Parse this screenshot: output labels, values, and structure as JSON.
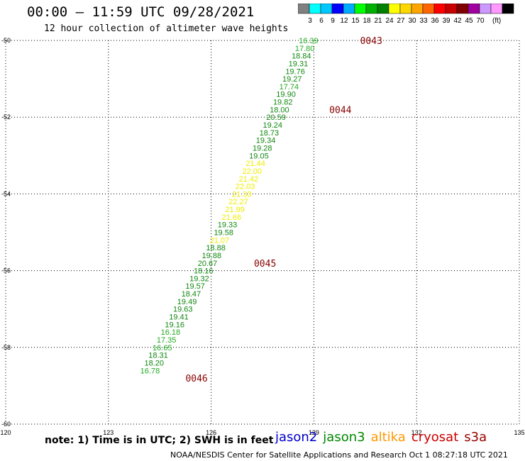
{
  "header": {
    "title": "00:00 – 11:59 UTC 09/28/2021",
    "subtitle": "12 hour collection of altimeter wave heights"
  },
  "colorbar": {
    "labels": [
      "3",
      "6",
      "9",
      "12",
      "15",
      "18",
      "21",
      "24",
      "27",
      "30",
      "33",
      "36",
      "39",
      "42",
      "45",
      "70"
    ],
    "unit": "(ft)",
    "colors": [
      "#808080",
      "#00ffff",
      "#00c8ff",
      "#0000ff",
      "#00aaff",
      "#00ff00",
      "#00b000",
      "#008000",
      "#ffff00",
      "#ffd700",
      "#ffa500",
      "#ff6600",
      "#ff0000",
      "#c80000",
      "#800000",
      "#a000a0",
      "#cc99ff",
      "#ff99ff",
      "#000000"
    ]
  },
  "footer": {
    "note": "note: 1) Time is in UTC; 2) SWH is in feet",
    "credit": "NOAA/NESDIS Center for Satellite Applications and Research    Oct  1 08:27:18 UTC 2021"
  },
  "satellites": [
    {
      "name": "jason2",
      "color": "#0000cc"
    },
    {
      "name": "jason3",
      "color": "#008800"
    },
    {
      "name": "altika",
      "color": "#ff9900"
    },
    {
      "name": "cryosat",
      "color": "#cc0000"
    },
    {
      "name": "s3a",
      "color": "#990000"
    }
  ],
  "chart_data": {
    "type": "scatter",
    "xlim": [
      120,
      135
    ],
    "ylim": [
      -60,
      -50
    ],
    "x_ticks": [
      120,
      123,
      126,
      129,
      132,
      135
    ],
    "y_ticks": [
      -50,
      -52,
      -54,
      -56,
      -58,
      -60
    ],
    "grid": true,
    "points": [
      {
        "lon": 129.13,
        "lat": -50.0,
        "value": "16.39",
        "color": "#22aa22"
      },
      {
        "lon": 129.02,
        "lat": -50.2,
        "value": "17.80",
        "color": "#22aa22"
      },
      {
        "lon": 128.92,
        "lat": -50.4,
        "value": "18.84",
        "color": "#118811"
      },
      {
        "lon": 128.83,
        "lat": -50.6,
        "value": "19.31",
        "color": "#118811"
      },
      {
        "lon": 128.74,
        "lat": -50.8,
        "value": "19.76",
        "color": "#118811"
      },
      {
        "lon": 128.65,
        "lat": -51.0,
        "value": "19.27",
        "color": "#118811"
      },
      {
        "lon": 128.56,
        "lat": -51.2,
        "value": "17.74",
        "color": "#22aa22"
      },
      {
        "lon": 128.47,
        "lat": -51.4,
        "value": "19.90",
        "color": "#118811"
      },
      {
        "lon": 128.38,
        "lat": -51.6,
        "value": "19.82",
        "color": "#118811"
      },
      {
        "lon": 128.28,
        "lat": -51.8,
        "value": "18.00",
        "color": "#118811"
      },
      {
        "lon": 128.18,
        "lat": -52.0,
        "value": "20.59",
        "color": "#118811"
      },
      {
        "lon": 128.08,
        "lat": -52.2,
        "value": "19.24",
        "color": "#118811"
      },
      {
        "lon": 127.98,
        "lat": -52.4,
        "value": "18.73",
        "color": "#118811"
      },
      {
        "lon": 127.88,
        "lat": -52.6,
        "value": "19.34",
        "color": "#118811"
      },
      {
        "lon": 127.78,
        "lat": -52.8,
        "value": "19.28",
        "color": "#118811"
      },
      {
        "lon": 127.68,
        "lat": -53.0,
        "value": "19.05",
        "color": "#118811"
      },
      {
        "lon": 127.58,
        "lat": -53.2,
        "value": "21.44",
        "color": "#eeee00"
      },
      {
        "lon": 127.48,
        "lat": -53.4,
        "value": "22.00",
        "color": "#eeee00"
      },
      {
        "lon": 127.38,
        "lat": -53.6,
        "value": "21.42",
        "color": "#eeee00"
      },
      {
        "lon": 127.28,
        "lat": -53.8,
        "value": "22.03",
        "color": "#eeee00"
      },
      {
        "lon": 127.18,
        "lat": -54.0,
        "value": "21.33",
        "color": "#eeee00"
      },
      {
        "lon": 127.08,
        "lat": -54.2,
        "value": "22.27",
        "color": "#eeee00"
      },
      {
        "lon": 126.98,
        "lat": -54.4,
        "value": "21.99",
        "color": "#eeee00"
      },
      {
        "lon": 126.88,
        "lat": -54.6,
        "value": "21.66",
        "color": "#eeee00"
      },
      {
        "lon": 126.76,
        "lat": -54.8,
        "value": "19.33",
        "color": "#118811"
      },
      {
        "lon": 126.65,
        "lat": -55.0,
        "value": "19.58",
        "color": "#118811"
      },
      {
        "lon": 126.53,
        "lat": -55.2,
        "value": "21.07",
        "color": "#eeee00"
      },
      {
        "lon": 126.42,
        "lat": -55.4,
        "value": "18.88",
        "color": "#118811"
      },
      {
        "lon": 126.3,
        "lat": -55.6,
        "value": "19.88",
        "color": "#118811"
      },
      {
        "lon": 126.18,
        "lat": -55.8,
        "value": "20.67",
        "color": "#118811"
      },
      {
        "lon": 126.06,
        "lat": -56.0,
        "value": "18.16",
        "color": "#118811"
      },
      {
        "lon": 125.94,
        "lat": -56.2,
        "value": "19.32",
        "color": "#118811"
      },
      {
        "lon": 125.82,
        "lat": -56.4,
        "value": "19.57",
        "color": "#118811"
      },
      {
        "lon": 125.7,
        "lat": -56.6,
        "value": "18.47",
        "color": "#118811"
      },
      {
        "lon": 125.58,
        "lat": -56.8,
        "value": "19.49",
        "color": "#118811"
      },
      {
        "lon": 125.46,
        "lat": -57.0,
        "value": "19.63",
        "color": "#118811"
      },
      {
        "lon": 125.34,
        "lat": -57.2,
        "value": "19.41",
        "color": "#118811"
      },
      {
        "lon": 125.22,
        "lat": -57.4,
        "value": "19.16",
        "color": "#118811"
      },
      {
        "lon": 125.1,
        "lat": -57.6,
        "value": "16.18",
        "color": "#22aa22"
      },
      {
        "lon": 124.98,
        "lat": -57.8,
        "value": "17.35",
        "color": "#22aa22"
      },
      {
        "lon": 124.86,
        "lat": -58.0,
        "value": "16.65",
        "color": "#22aa22"
      },
      {
        "lon": 124.74,
        "lat": -58.2,
        "value": "18.31",
        "color": "#118811"
      },
      {
        "lon": 124.62,
        "lat": -58.4,
        "value": "18.20",
        "color": "#118811"
      },
      {
        "lon": 124.5,
        "lat": -58.6,
        "value": "16.78",
        "color": "#22aa22"
      }
    ],
    "time_labels": [
      {
        "lon": 131.0,
        "lat": -50.0,
        "text": "0043"
      },
      {
        "lon": 130.1,
        "lat": -51.8,
        "text": "0044"
      },
      {
        "lon": 127.9,
        "lat": -55.8,
        "text": "0045"
      },
      {
        "lon": 125.9,
        "lat": -58.8,
        "text": "0046"
      }
    ]
  }
}
